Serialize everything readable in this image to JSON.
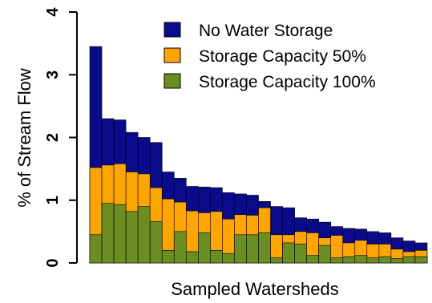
{
  "chart_data": {
    "type": "bar",
    "stacked": false,
    "overlapping": true,
    "title": "",
    "xlabel": "Sampled Watersheds",
    "ylabel": "% of Stream Flow",
    "ylim": [
      0,
      4
    ],
    "yticks": [
      "0",
      "1",
      "2",
      "3",
      "4"
    ],
    "grid": false,
    "legend_position": "top-right",
    "categories_count": 28,
    "series": [
      {
        "name": "No Water Storage",
        "color": "#0a0a8c",
        "values": [
          3.45,
          2.3,
          2.28,
          2.08,
          2.0,
          1.92,
          1.45,
          1.35,
          1.22,
          1.21,
          1.2,
          1.12,
          1.1,
          1.08,
          0.98,
          0.9,
          0.88,
          0.72,
          0.7,
          0.65,
          0.58,
          0.55,
          0.54,
          0.5,
          0.48,
          0.4,
          0.35,
          0.32
        ]
      },
      {
        "name": "Storage Capacity 50%",
        "color": "#ffa500",
        "values": [
          1.52,
          1.56,
          1.58,
          1.45,
          1.42,
          1.2,
          1.02,
          0.97,
          0.83,
          0.8,
          0.82,
          0.7,
          0.77,
          0.76,
          0.88,
          0.45,
          0.45,
          0.5,
          0.48,
          0.4,
          0.44,
          0.32,
          0.36,
          0.3,
          0.3,
          0.22,
          0.18,
          0.2
        ]
      },
      {
        "name": "Storage Capacity 100%",
        "color": "#6b8e23",
        "values": [
          0.45,
          0.95,
          0.93,
          0.82,
          0.9,
          0.66,
          0.2,
          0.5,
          0.18,
          0.48,
          0.2,
          0.15,
          0.45,
          0.45,
          0.48,
          0.08,
          0.32,
          0.3,
          0.12,
          0.28,
          0.08,
          0.1,
          0.12,
          0.08,
          0.1,
          0.07,
          0.1,
          0.1
        ]
      }
    ]
  }
}
